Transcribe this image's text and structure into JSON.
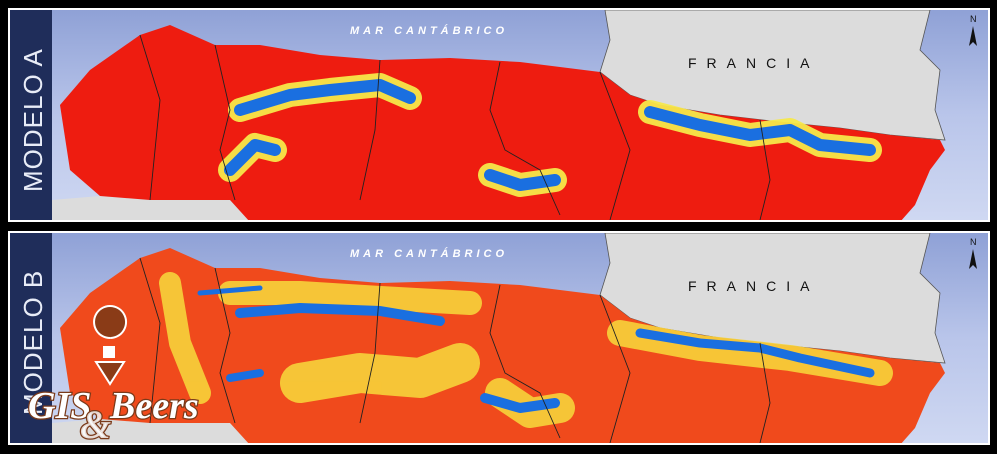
{
  "panels": [
    {
      "label": "MODELO A",
      "sea_label": "MAR CANTÁBRICO",
      "country_label": "FRANCIA",
      "north_label": "N"
    },
    {
      "label": "MODELO B",
      "sea_label": "MAR CANTÁBRICO",
      "country_label": "FRANCIA",
      "north_label": "N"
    }
  ],
  "logo": {
    "text_1": "GIS",
    "ampersand": "&",
    "text_2": "Beers"
  }
}
